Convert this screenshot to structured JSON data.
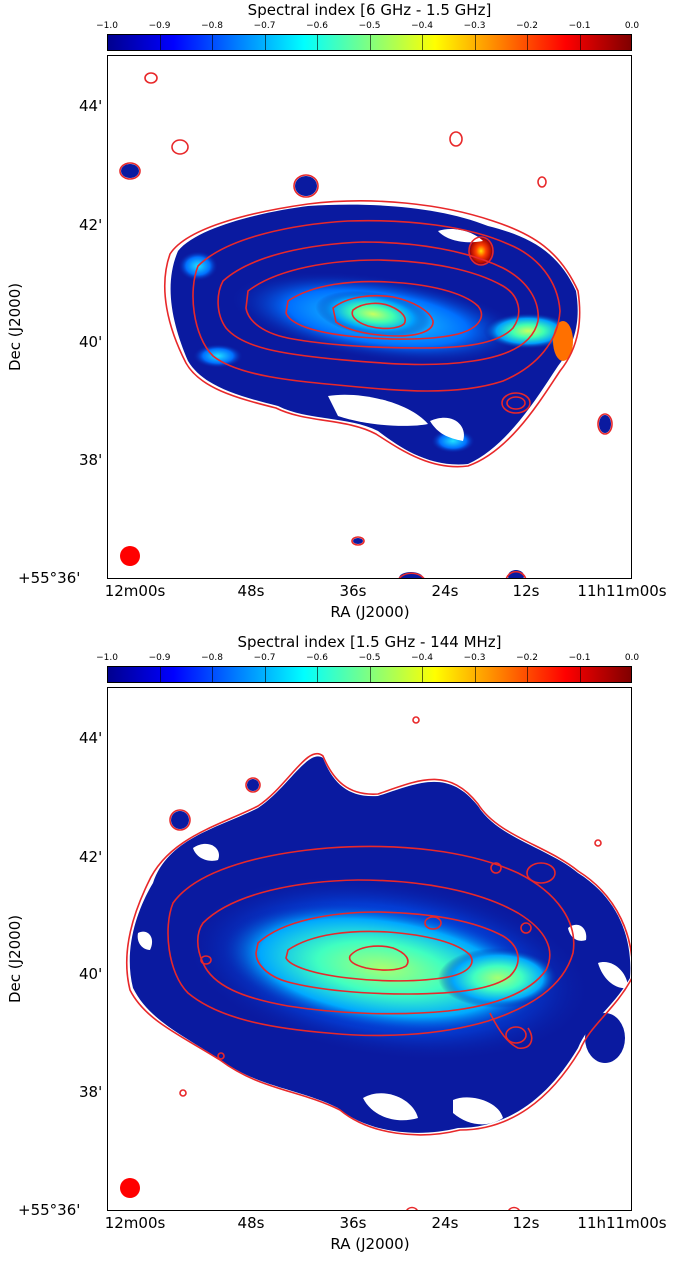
{
  "chart_data": [
    {
      "type": "heatmap",
      "title": "Spectral index [6 GHz - 1.5 GHz]",
      "colorbar": {
        "ticks": [
          "−1.0",
          "−0.9",
          "−0.8",
          "−0.7",
          "−0.6",
          "−0.5",
          "−0.4",
          "−0.3",
          "−0.2",
          "−0.1",
          "0.0"
        ],
        "range": [
          -1.0,
          0.0
        ],
        "colormap": "jet"
      },
      "xlabel": "RA (J2000)",
      "ylabel": "Dec (J2000)",
      "x_ticks": [
        "12m00s",
        "48s",
        "36s",
        "24s",
        "12s",
        "11h11m00s"
      ],
      "y_ticks": [
        "+55°36'",
        "38'",
        "40'",
        "42'",
        "44'"
      ],
      "contour_color": "#e8282a",
      "beam_color": "#ff0000",
      "background_color": "#0a1aa0"
    },
    {
      "type": "heatmap",
      "title": "Spectral index [1.5 GHz - 144 MHz]",
      "colorbar": {
        "ticks": [
          "−1.0",
          "−0.9",
          "−0.8",
          "−0.7",
          "−0.6",
          "−0.5",
          "−0.4",
          "−0.3",
          "−0.2",
          "−0.1",
          "0.0"
        ],
        "range": [
          -1.0,
          0.0
        ],
        "colormap": "jet"
      },
      "xlabel": "RA (J2000)",
      "ylabel": "Dec (J2000)",
      "x_ticks": [
        "12m00s",
        "48s",
        "36s",
        "24s",
        "12s",
        "11h11m00s"
      ],
      "y_ticks": [
        "+55°36'",
        "38'",
        "40'",
        "42'",
        "44'"
      ],
      "contour_color": "#e8282a",
      "beam_color": "#ff0000",
      "background_color": "#0a1aa0"
    }
  ]
}
